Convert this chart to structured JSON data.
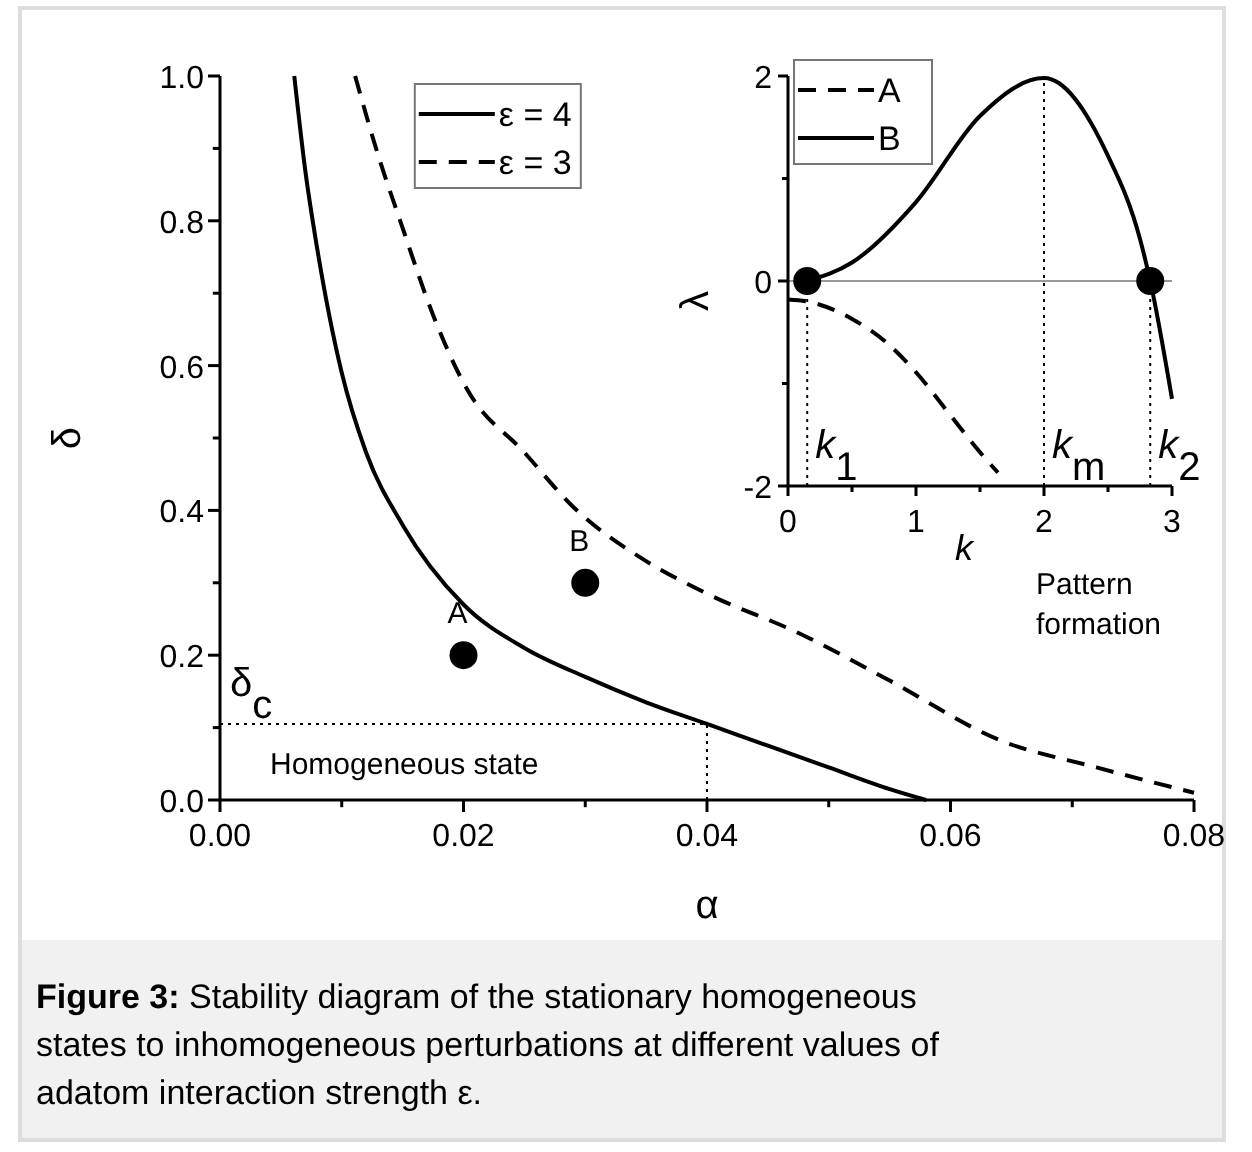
{
  "chart_data": [
    {
      "type": "line",
      "xlabel": "α",
      "ylabel": "δ",
      "xlim": [
        0,
        0.08
      ],
      "ylim": [
        0,
        1
      ],
      "xticks": [
        {
          "value": 0,
          "label": "0.00"
        },
        {
          "value": 0.01,
          "label": null
        },
        {
          "value": 0.02,
          "label": "0.02"
        },
        {
          "value": 0.03,
          "label": null
        },
        {
          "value": 0.04,
          "label": "0.04"
        },
        {
          "value": 0.05,
          "label": null
        },
        {
          "value": 0.06,
          "label": "0.06"
        },
        {
          "value": 0.07,
          "label": null
        },
        {
          "value": 0.08,
          "label": "0.08"
        }
      ],
      "yticks": [
        {
          "value": 0,
          "label": "0.0"
        },
        {
          "value": 0.1,
          "label": null
        },
        {
          "value": 0.2,
          "label": "0.2"
        },
        {
          "value": 0.3,
          "label": null
        },
        {
          "value": 0.4,
          "label": "0.4"
        },
        {
          "value": 0.5,
          "label": null
        },
        {
          "value": 0.6,
          "label": "0.6"
        },
        {
          "value": 0.7,
          "label": null
        },
        {
          "value": 0.8,
          "label": "0.8"
        },
        {
          "value": 0.9,
          "label": null
        },
        {
          "value": 1,
          "label": "1.0"
        }
      ],
      "legend": "top",
      "grid": false,
      "series": [
        {
          "name": "ε = 4",
          "color": "#000000",
          "line_style": "solid",
          "x": [
            0.0061,
            0.007,
            0.008,
            0.01,
            0.012,
            0.015,
            0.02,
            0.025,
            0.03,
            0.035,
            0.04,
            0.045,
            0.05,
            0.055,
            0.058
          ],
          "values": [
            1.0,
            0.87,
            0.76,
            0.59,
            0.48,
            0.38,
            0.27,
            0.21,
            0.17,
            0.135,
            0.105,
            0.075,
            0.045,
            0.015,
            0
          ]
        },
        {
          "name": "ε = 3",
          "color": "#000000",
          "line_style": "dashed",
          "x": [
            0.0111,
            0.013,
            0.0148,
            0.0175,
            0.0202,
            0.025,
            0.029,
            0.035,
            0.04,
            0.0476,
            0.055,
            0.064,
            0.072,
            0.08
          ],
          "values": [
            1.0,
            0.89,
            0.8,
            0.67,
            0.57,
            0.48,
            0.405,
            0.33,
            0.285,
            0.23,
            0.165,
            0.083,
            0.045,
            0.01
          ]
        },
        {
          "type": "scatter",
          "color": "#000000",
          "marker": "circle",
          "x": [
            0.02,
            0.03
          ],
          "values": [
            0.2,
            0.3
          ]
        }
      ],
      "ref_lines": [
        {
          "axis": "y",
          "value": 0.105,
          "label": "δ$_{c}$",
          "line_style": "dotted",
          "color": "#000000"
        },
        {
          "axis": "x",
          "value": 0.04,
          "line_style": "dotted",
          "color": "#000000"
        }
      ],
      "annotations": [
        {
          "text": "A",
          "x": 0.02,
          "y": 0.2
        },
        {
          "text": "B",
          "x": 0.03,
          "y": 0.3
        },
        "Homogeneous state",
        "Pattern formation",
        "Figure 3: Stability diagram of the stationary homogeneous states to inhomogeneous perturbations at different values of adatom interaction strength ε."
      ]
    },
    {
      "type": "line",
      "xlabel": "k",
      "ylabel": "λ",
      "xlim": [
        0,
        3
      ],
      "ylim": [
        -2,
        2
      ],
      "xticks": [
        0,
        {
          "value": 0.5,
          "label": null
        },
        1,
        {
          "value": 1.5,
          "label": null
        },
        2,
        {
          "value": 2.5,
          "label": null
        },
        3
      ],
      "yticks": [
        -2,
        {
          "value": -1,
          "label": null
        },
        0,
        {
          "value": 1,
          "label": null
        },
        2
      ],
      "legend": "top left",
      "grid": false,
      "series": [
        {
          "name": "A",
          "color": "#000000",
          "line_style": "dashed",
          "x": [
            0,
            0.15,
            0.5,
            0.75,
            1,
            1.25,
            1.5,
            1.64
          ],
          "values": [
            -0.18,
            -0.2,
            -0.37,
            -0.58,
            -0.89,
            -1.28,
            -1.67,
            -1.87
          ]
        },
        {
          "name": "B",
          "color": "#000000",
          "line_style": "solid",
          "x": [
            0.15,
            0.5,
            1,
            1.5,
            2,
            2.5,
            2.75,
            2.83,
            3
          ],
          "values": [
            0,
            0.18,
            0.77,
            1.61,
            1.98,
            1.22,
            0.41,
            0,
            -1.15
          ]
        },
        {
          "type": "scatter",
          "color": "#000000",
          "marker": "circle",
          "x": [
            0.15,
            2.83
          ],
          "values": [
            0,
            0
          ]
        }
      ],
      "ref_lines": [
        {
          "axis": "y",
          "value": 0,
          "color": "#999999",
          "line_style": "solid"
        },
        {
          "axis": "x",
          "value": 0.15,
          "label": "k$_{1}$",
          "line_style": "dotted",
          "color": "#000000"
        },
        {
          "axis": "x",
          "value": 2,
          "label": "k$_{m}$",
          "line_style": "dotted",
          "color": "#000000"
        },
        {
          "axis": "x",
          "value": 2.83,
          "label": "k$_{2}$",
          "line_style": "dotted",
          "color": "#000000"
        }
      ]
    }
  ]
}
